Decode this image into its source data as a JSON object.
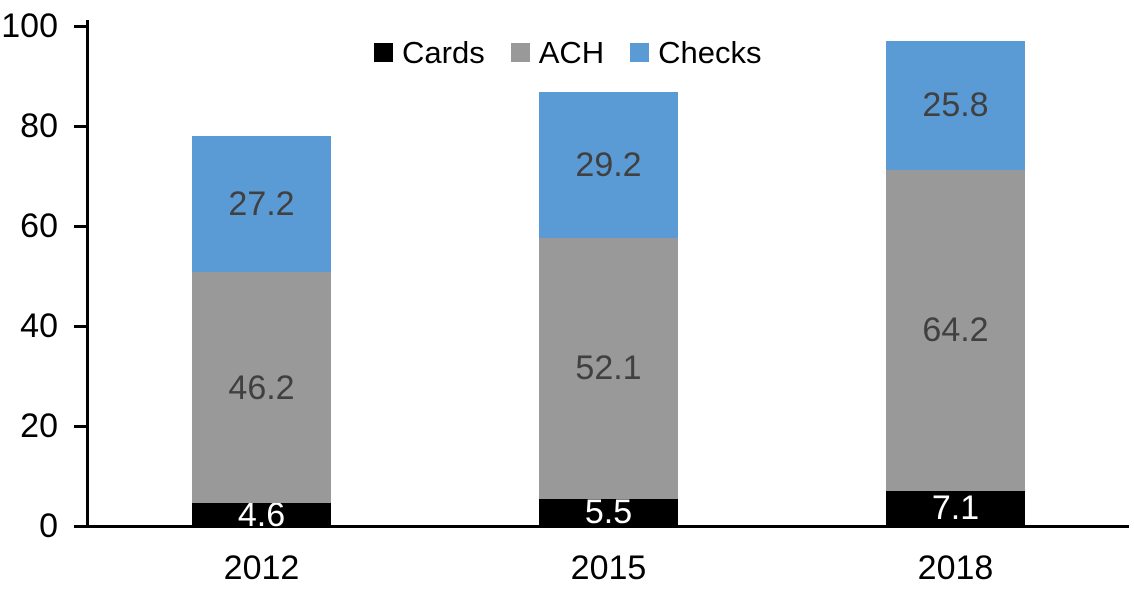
{
  "chart_data": {
    "type": "bar",
    "variant": "stacked-column",
    "title": "",
    "categories": [
      "2012",
      "2015",
      "2018"
    ],
    "series": [
      {
        "name": "Cards",
        "color": "#000000",
        "label_color": "#ffffff",
        "values": [
          4.6,
          5.5,
          7.1
        ]
      },
      {
        "name": "ACH",
        "color": "#999999",
        "label_color": "#404040",
        "values": [
          46.2,
          52.1,
          64.2
        ]
      },
      {
        "name": "Checks",
        "color": "#5b9bd5",
        "label_color": "#404040",
        "values": [
          27.2,
          29.2,
          25.8
        ]
      }
    ],
    "xlabel": "",
    "ylabel": "",
    "ylim": [
      0,
      100
    ],
    "y_ticks": [
      0,
      20,
      40,
      60,
      80,
      100
    ],
    "grid": false,
    "legend_position": "top-center",
    "axis_color": "#000000",
    "background_color": "#ffffff",
    "data_labels_visible": true
  }
}
